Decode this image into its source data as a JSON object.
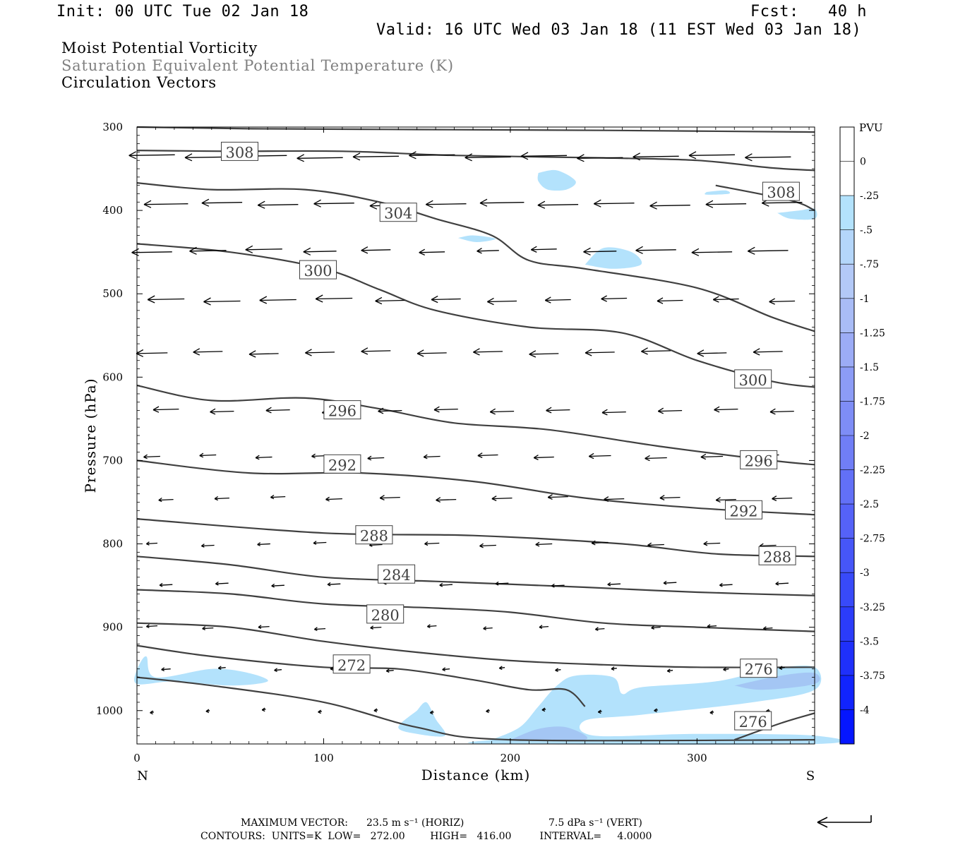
{
  "header": {
    "init": "Init: 00 UTC Tue 02 Jan 18",
    "fcst": "Fcst:   40 h",
    "valid": "Valid: 16 UTC Wed 03 Jan 18 (11 EST Wed 03 Jan 18)",
    "titles": [
      {
        "text": "Moist Potential Vorticity",
        "color": "#000000"
      },
      {
        "text": "Saturation Equivalent Potential Temperature (K)",
        "color": "#808080"
      },
      {
        "text": "Circulation Vectors",
        "color": "#000000"
      }
    ]
  },
  "footer": {
    "maxvec_label": "MAXIMUM VECTOR:",
    "horiz": "23.5 m s⁻¹ (HORIZ)",
    "vert": "7.5 dPa s⁻¹ (VERT)",
    "contours": "CONTOURS:  UNITS=K  LOW=   272.00        HIGH=   416.00         INTERVAL=     4.0000"
  },
  "chart_data": {
    "type": "cross-section",
    "xlabel": "Distance (km)",
    "ylabel": "Pressure (hPa)",
    "xlim": [
      0,
      363
    ],
    "ylim": [
      1040,
      300
    ],
    "x_ticks": [
      0,
      100,
      200,
      300
    ],
    "y_ticks": [
      300,
      400,
      500,
      600,
      700,
      800,
      900,
      1000
    ],
    "x_end_labels": {
      "left": "N",
      "right": "S"
    },
    "colorbar": {
      "title": "PVU",
      "ticks": [
        "0",
        "-.25",
        "-.5",
        "-.75",
        "-1",
        "-1.25",
        "-1.5",
        "-1.75",
        "-2",
        "-2.25",
        "-2.5",
        "-2.75",
        "-3",
        "-3.25",
        "-3.5",
        "-3.75",
        "-4"
      ],
      "colors": [
        "#ffffff",
        "#ffffff",
        "#b3e2fc",
        "#b4d6fa",
        "#b3c9f7",
        "#a9bcf6",
        "#9cacf6",
        "#8c9cf6",
        "#7e8df6",
        "#707ef6",
        "#6270f7",
        "#5562f8",
        "#4656f8",
        "#384af9",
        "#2b3cfa",
        "#1f30fb",
        "#1124fd",
        "#0516ff"
      ]
    },
    "theta_contours": [
      {
        "label": "308",
        "points": [
          [
            0,
            300
          ],
          [
            60,
            302
          ],
          [
            150,
            303
          ],
          [
            250,
            304
          ],
          [
            363,
            306
          ]
        ]
      },
      {
        "label": "308",
        "points": [
          [
            0,
            328
          ],
          [
            50,
            329
          ],
          [
            110,
            329
          ],
          [
            170,
            334
          ],
          [
            250,
            337
          ],
          [
            300,
            340
          ],
          [
            340,
            349
          ],
          [
            363,
            352
          ]
        ]
      },
      {
        "label": "308",
        "points": [
          [
            310,
            370
          ],
          [
            350,
            388
          ],
          [
            363,
            400
          ]
        ]
      },
      {
        "label": "304",
        "points": [
          [
            0,
            367
          ],
          [
            40,
            375
          ],
          [
            90,
            375
          ],
          [
            130,
            390
          ],
          [
            160,
            410
          ],
          [
            190,
            430
          ],
          [
            210,
            460
          ],
          [
            240,
            470
          ],
          [
            300,
            493
          ],
          [
            340,
            528
          ],
          [
            363,
            545
          ]
        ]
      },
      {
        "label": "300",
        "points": [
          [
            0,
            440
          ],
          [
            50,
            450
          ],
          [
            100,
            470
          ],
          [
            130,
            495
          ],
          [
            160,
            520
          ],
          [
            210,
            540
          ],
          [
            260,
            547
          ],
          [
            300,
            580
          ],
          [
            340,
            605
          ],
          [
            363,
            612
          ]
        ]
      },
      {
        "label": "296",
        "points": [
          [
            0,
            610
          ],
          [
            40,
            628
          ],
          [
            90,
            625
          ],
          [
            130,
            638
          ],
          [
            170,
            655
          ],
          [
            220,
            663
          ],
          [
            280,
            683
          ],
          [
            340,
            700
          ],
          [
            363,
            705
          ]
        ]
      },
      {
        "label": "292",
        "points": [
          [
            0,
            700
          ],
          [
            60,
            715
          ],
          [
            120,
            715
          ],
          [
            180,
            725
          ],
          [
            240,
            745
          ],
          [
            300,
            757
          ],
          [
            363,
            765
          ]
        ]
      },
      {
        "label": "288",
        "points": [
          [
            0,
            770
          ],
          [
            100,
            787
          ],
          [
            180,
            790
          ],
          [
            260,
            800
          ],
          [
            310,
            812
          ],
          [
            363,
            815
          ]
        ]
      },
      {
        "label": "284",
        "points": [
          [
            0,
            815
          ],
          [
            50,
            825
          ],
          [
            100,
            840
          ],
          [
            160,
            845
          ],
          [
            240,
            852
          ],
          [
            300,
            858
          ],
          [
            363,
            862
          ]
        ]
      },
      {
        "label": "280",
        "points": [
          [
            0,
            855
          ],
          [
            50,
            860
          ],
          [
            100,
            872
          ],
          [
            160,
            877
          ],
          [
            200,
            882
          ],
          [
            250,
            895
          ],
          [
            300,
            900
          ],
          [
            363,
            905
          ]
        ]
      },
      {
        "label": "272",
        "points": [
          [
            0,
            895
          ],
          [
            50,
            900
          ],
          [
            100,
            917
          ],
          [
            150,
            930
          ],
          [
            200,
            940
          ],
          [
            250,
            945
          ],
          [
            300,
            948
          ],
          [
            363,
            948
          ]
        ]
      },
      {
        "label": "276",
        "points": [
          [
            0,
            922
          ],
          [
            40,
            935
          ],
          [
            100,
            948
          ],
          [
            140,
            950
          ],
          [
            180,
            963
          ],
          [
            210,
            975
          ],
          [
            230,
            975
          ],
          [
            240,
            995
          ]
        ]
      },
      {
        "label": "",
        "points": [
          [
            0,
            960
          ],
          [
            40,
            970
          ],
          [
            100,
            990
          ],
          [
            150,
            1020
          ],
          [
            200,
            1035
          ],
          [
            363,
            1035
          ]
        ]
      },
      {
        "label": "276",
        "points": [
          [
            320,
            1035
          ],
          [
            345,
            1015
          ],
          [
            363,
            1003
          ]
        ]
      }
    ],
    "mpv_regions": [
      {
        "value": -0.25,
        "points": [
          [
            0,
            950
          ],
          [
            5,
            935
          ],
          [
            10,
            960
          ],
          [
            40,
            950
          ],
          [
            60,
            955
          ],
          [
            70,
            965
          ],
          [
            50,
            970
          ],
          [
            20,
            965
          ],
          [
            0,
            968
          ]
        ]
      },
      {
        "value": -0.25,
        "points": [
          [
            150,
            1000
          ],
          [
            155,
            990
          ],
          [
            160,
            1010
          ],
          [
            165,
            1030
          ],
          [
            150,
            1028
          ],
          [
            140,
            1020
          ]
        ]
      },
      {
        "value": -0.25,
        "points": [
          [
            190,
            1035
          ],
          [
            205,
            1020
          ],
          [
            215,
            995
          ],
          [
            225,
            970
          ],
          [
            235,
            958
          ],
          [
            255,
            960
          ],
          [
            260,
            980
          ],
          [
            270,
            972
          ],
          [
            310,
            965
          ],
          [
            340,
            950
          ],
          [
            363,
            948
          ],
          [
            363,
            975
          ],
          [
            330,
            990
          ],
          [
            270,
            1005
          ],
          [
            240,
            1012
          ],
          [
            245,
            1030
          ],
          [
            300,
            1028
          ],
          [
            363,
            1030
          ],
          [
            363,
            1040
          ],
          [
            190,
            1040
          ]
        ]
      },
      {
        "value": -0.5,
        "points": [
          [
            200,
            1035
          ],
          [
            215,
            1022
          ],
          [
            230,
            1020
          ],
          [
            240,
            1035
          ]
        ]
      },
      {
        "value": -0.5,
        "points": [
          [
            320,
            970
          ],
          [
            345,
            958
          ],
          [
            363,
            955
          ],
          [
            363,
            968
          ],
          [
            335,
            975
          ]
        ]
      },
      {
        "value": -0.25,
        "points": [
          [
            215,
            355
          ],
          [
            225,
            352
          ],
          [
            235,
            365
          ],
          [
            230,
            375
          ],
          [
            220,
            375
          ],
          [
            215,
            365
          ]
        ]
      },
      {
        "value": -0.25,
        "points": [
          [
            240,
            465
          ],
          [
            250,
            445
          ],
          [
            265,
            450
          ],
          [
            270,
            465
          ],
          [
            255,
            470
          ]
        ]
      },
      {
        "value": -0.25,
        "points": [
          [
            172,
            433
          ],
          [
            180,
            430
          ],
          [
            192,
            434
          ],
          [
            182,
            438
          ]
        ]
      },
      {
        "value": -0.25,
        "points": [
          [
            305,
            378
          ],
          [
            315,
            376
          ],
          [
            317,
            380
          ],
          [
            305,
            381
          ]
        ]
      },
      {
        "value": -0.25,
        "points": [
          [
            343,
            403
          ],
          [
            355,
            400
          ],
          [
            363,
            398
          ],
          [
            363,
            410
          ],
          [
            350,
            410
          ]
        ]
      }
    ],
    "circulation_vectors": {
      "columns_km": [
        8,
        38,
        68,
        98,
        128,
        158,
        188,
        218,
        248,
        278,
        308,
        338,
        363
      ],
      "rows": [
        {
          "p": 335,
          "u": [
            -25,
            -25,
            -25,
            -25,
            -25,
            -25,
            -25,
            -25,
            -25,
            -25,
            -25,
            -25,
            -25
          ]
        },
        {
          "p": 392,
          "u": [
            -24,
            -22,
            -22,
            -22,
            -22,
            -22,
            -24,
            -22,
            -22,
            -22,
            -22,
            -22,
            -22
          ]
        },
        {
          "p": 448,
          "u": [
            -22,
            -20,
            -20,
            -18,
            -16,
            -14,
            -12,
            -14,
            -18,
            -22,
            -22,
            -22,
            -22
          ]
        },
        {
          "p": 507,
          "u": [
            -20,
            -20,
            -20,
            -20,
            -16,
            -16,
            -16,
            -14,
            -14,
            -14,
            -14,
            -14,
            -14
          ]
        },
        {
          "p": 570,
          "u": [
            -17,
            -16,
            -16,
            -16,
            -16,
            -16,
            -16,
            -16,
            -16,
            -16,
            -16,
            -16,
            -16
          ]
        },
        {
          "p": 640,
          "u": [
            -14,
            -13,
            -13,
            -13,
            -13,
            -13,
            -13,
            -13,
            -13,
            -13,
            -13,
            -13,
            -13
          ]
        },
        {
          "p": 695,
          "u": [
            -9,
            -9,
            -9,
            -9,
            -9,
            -9,
            -11,
            -11,
            -12,
            -12,
            -12,
            -12,
            -12
          ]
        },
        {
          "p": 745,
          "u": [
            -8,
            -8,
            -8,
            -9,
            -11,
            -11,
            -11,
            -11,
            -11,
            -11,
            -11,
            -11,
            -11
          ]
        },
        {
          "p": 800,
          "u": [
            -6,
            -7,
            -7,
            -7,
            -7,
            -8,
            -9,
            -9,
            -9,
            -9,
            -9,
            -9,
            -9
          ]
        },
        {
          "p": 848,
          "u": [
            -7,
            -7,
            -7,
            -7,
            -7,
            -7,
            -7,
            -7,
            -7,
            -7,
            -7,
            -7,
            -7
          ]
        },
        {
          "p": 900,
          "u": [
            -6,
            -6,
            -6,
            -6,
            -6,
            -5,
            -5,
            -5,
            -5,
            -5,
            -5,
            -5,
            -5
          ]
        },
        {
          "p": 950,
          "u": [
            -5,
            -4,
            -4,
            -4,
            -4,
            -4,
            -3,
            -3,
            -3,
            -3,
            -3,
            -3,
            -3
          ]
        },
        {
          "p": 1000,
          "u": [
            -2,
            -2,
            -2,
            -2,
            -2,
            -2,
            -2,
            -2,
            -2,
            -2,
            -2,
            -2,
            -2
          ]
        }
      ]
    }
  }
}
